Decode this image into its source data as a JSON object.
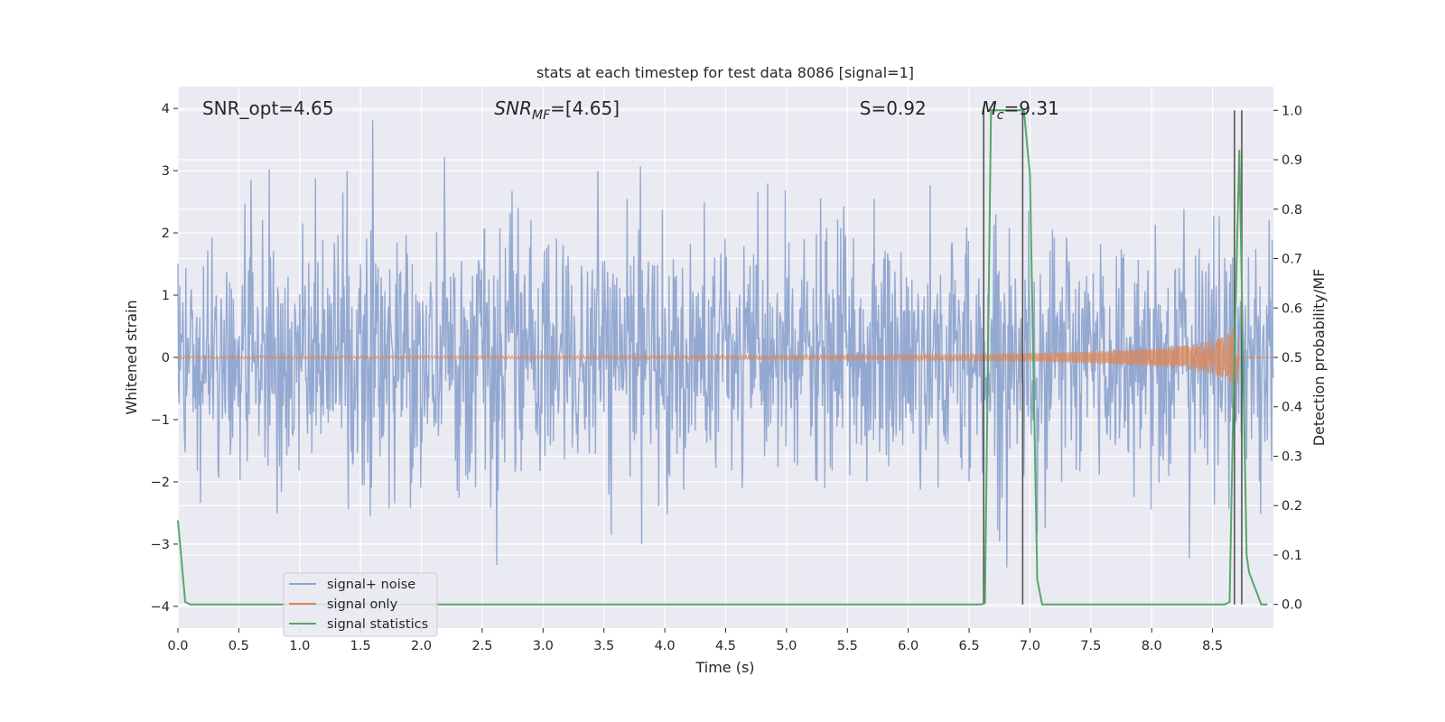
{
  "chart_data": {
    "type": "line",
    "title": "stats at each timestep for test data 8086 [signal=1]",
    "xlabel": "Time (s)",
    "ylabel_left": "Whitened strain",
    "ylabel_right": "Detection probability/MF",
    "xlim": [
      0.0,
      9.0
    ],
    "ylim_left": [
      -4.35,
      4.35
    ],
    "ylim_right": [
      -0.048,
      1.048
    ],
    "grid": true,
    "x_ticks": [
      "0.0",
      "0.5",
      "1.0",
      "1.5",
      "2.0",
      "2.5",
      "3.0",
      "3.5",
      "4.0",
      "4.5",
      "5.0",
      "5.5",
      "6.0",
      "6.5",
      "7.0",
      "7.5",
      "8.0",
      "8.5"
    ],
    "y_ticks_left": [
      "4",
      "3",
      "2",
      "1",
      "0",
      "−1",
      "−2",
      "−3",
      "−4"
    ],
    "y_ticks_right": [
      "1.0",
      "0.9",
      "0.8",
      "0.7",
      "0.6",
      "0.5",
      "0.4",
      "0.3",
      "0.2",
      "0.1",
      "0.0"
    ],
    "annotations": [
      {
        "id": "snr-opt",
        "text": "SNR_opt=4.65",
        "x": 0.2,
        "y": 4.0
      },
      {
        "id": "snr-mf",
        "text": "SNR_MF=[4.65]",
        "x": 2.6,
        "y": 4.0
      },
      {
        "id": "s-val",
        "text": "S=0.92",
        "x": 5.6,
        "y": 4.0
      },
      {
        "id": "mc-val",
        "text": "M_c=9.31",
        "x": 6.6,
        "y": 4.0
      }
    ],
    "legend": {
      "placement": "lower-left",
      "entries": [
        {
          "id": "signal-noise",
          "label": "signal+ noise",
          "color": "#8fa5cf"
        },
        {
          "id": "signal-only",
          "label": "signal only",
          "color": "#dd8452"
        },
        {
          "id": "signal-statistics",
          "label": "signal statistics",
          "color": "#55a868"
        }
      ]
    },
    "series": [
      {
        "id": "signal-noise",
        "label": "signal+ noise",
        "axis": "left",
        "color": "#8fa5cf",
        "kind": "noise",
        "sigma": 1.0,
        "x_range": [
          0.0,
          9.0
        ]
      },
      {
        "id": "signal-only",
        "label": "signal only",
        "axis": "left",
        "color": "#dd8452",
        "kind": "chirp",
        "x_range": [
          0.0,
          8.72
        ],
        "envelope": {
          "x": [
            0.0,
            4.5,
            6.0,
            7.0,
            7.5,
            8.0,
            8.3,
            8.5,
            8.6,
            8.65,
            8.7,
            8.72
          ],
          "amp": [
            0.02,
            0.03,
            0.04,
            0.07,
            0.1,
            0.15,
            0.2,
            0.27,
            0.34,
            0.42,
            0.55,
            0.0
          ]
        }
      },
      {
        "id": "signal-statistics",
        "label": "signal statistics",
        "axis": "right",
        "color": "#55a868",
        "x": [
          0.0,
          0.06,
          0.1,
          0.2,
          6.6,
          6.63,
          6.68,
          6.95,
          7.0,
          7.06,
          7.1,
          8.6,
          8.64,
          8.67,
          8.72,
          8.78,
          8.8,
          8.9,
          8.95
        ],
        "y": [
          0.17,
          0.005,
          0.0,
          0.0,
          0.0,
          0.003,
          1.0,
          1.0,
          0.87,
          0.05,
          0.0,
          0.0,
          0.005,
          0.4,
          0.92,
          0.1,
          0.065,
          0.0,
          0.0
        ]
      }
    ],
    "vertical_lines": [
      {
        "x": 6.62,
        "y_range": [
          0.0,
          1.0
        ]
      },
      {
        "x": 6.94,
        "y_range": [
          0.0,
          1.0
        ]
      },
      {
        "x": 8.68,
        "y_range": [
          0.0,
          1.0
        ]
      },
      {
        "x": 8.74,
        "y_range": [
          0.0,
          1.0
        ]
      }
    ]
  }
}
